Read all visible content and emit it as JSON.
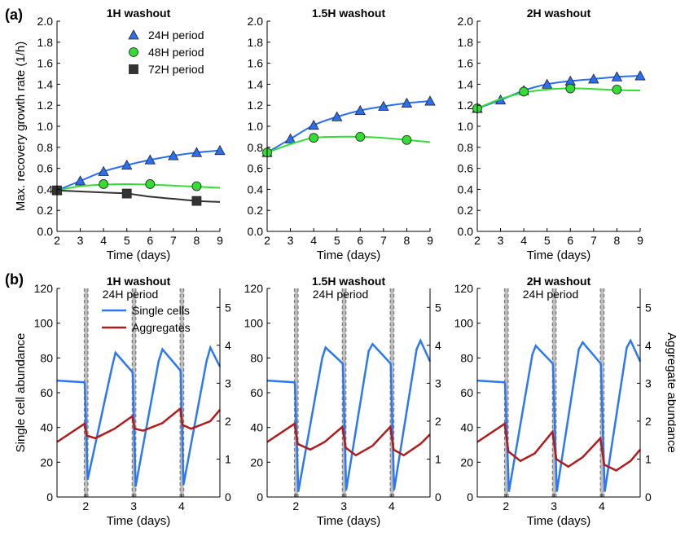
{
  "panel_labels": [
    "(a)",
    "(b)"
  ],
  "colors": {
    "p24": "#2b6ff0",
    "p48": "#33dd33",
    "p72": "#333333",
    "single": "#2b78f0",
    "agg": "#b01c1c",
    "washout": "#bdbdbd"
  },
  "chart_data": [
    {
      "type": "line",
      "id": "a1",
      "title": "1H washout",
      "xlabel": "Time (days)",
      "ylabel": "Max. recovery growth rate (1/h)",
      "xlim": [
        2,
        9
      ],
      "ylim": [
        0.0,
        2.0
      ],
      "xticks": [
        "2",
        "3",
        "4",
        "5",
        "6",
        "7",
        "8",
        "9"
      ],
      "yticks": [
        "0.0",
        "0.2",
        "0.4",
        "0.6",
        "0.8",
        "1.0",
        "1.2",
        "1.4",
        "1.6",
        "1.8",
        "2.0"
      ],
      "legend": [
        "24H period",
        "48H period",
        "72H period"
      ],
      "series": [
        {
          "name": "24H period",
          "color_key": "p24",
          "marker": "triangle",
          "x": [
            2,
            3,
            4,
            5,
            6,
            7,
            8,
            9
          ],
          "values": [
            0.39,
            0.48,
            0.57,
            0.63,
            0.68,
            0.72,
            0.75,
            0.77
          ]
        },
        {
          "name": "48H period",
          "color_key": "p48",
          "marker": "circle",
          "x": [
            2,
            4,
            6,
            8
          ],
          "values": [
            0.39,
            0.45,
            0.45,
            0.43
          ],
          "curve_x": [
            2,
            3,
            4,
            5,
            6,
            7,
            8,
            9
          ],
          "curve_y": [
            0.39,
            0.43,
            0.445,
            0.45,
            0.445,
            0.435,
            0.425,
            0.415
          ]
        },
        {
          "name": "72H period",
          "color_key": "p72",
          "marker": "square",
          "x": [
            2,
            5,
            8
          ],
          "values": [
            0.39,
            0.36,
            0.29
          ],
          "curve_x": [
            2,
            3,
            4,
            5,
            6,
            7,
            8,
            9
          ],
          "curve_y": [
            0.39,
            0.38,
            0.37,
            0.36,
            0.33,
            0.31,
            0.29,
            0.28
          ]
        }
      ]
    },
    {
      "type": "line",
      "id": "a2",
      "title": "1.5H washout",
      "xlabel": "Time (days)",
      "xlim": [
        2,
        9
      ],
      "ylim": [
        0.0,
        2.0
      ],
      "xticks": [
        "2",
        "3",
        "4",
        "5",
        "6",
        "7",
        "8",
        "9"
      ],
      "yticks": [
        "0.0",
        "0.2",
        "0.4",
        "0.6",
        "0.8",
        "1.0",
        "1.2",
        "1.4",
        "1.6",
        "1.8",
        "2.0"
      ],
      "series": [
        {
          "name": "24H period",
          "color_key": "p24",
          "marker": "triangle",
          "x": [
            2,
            3,
            4,
            5,
            6,
            7,
            8,
            9
          ],
          "values": [
            0.75,
            0.88,
            1.01,
            1.09,
            1.15,
            1.19,
            1.22,
            1.24
          ]
        },
        {
          "name": "48H period",
          "color_key": "p48",
          "marker": "circle",
          "x": [
            2,
            4,
            6,
            8
          ],
          "values": [
            0.75,
            0.89,
            0.9,
            0.87
          ],
          "curve_x": [
            2,
            3,
            4,
            5,
            6,
            7,
            8,
            9
          ],
          "curve_y": [
            0.75,
            0.83,
            0.89,
            0.9,
            0.9,
            0.89,
            0.87,
            0.85
          ]
        }
      ]
    },
    {
      "type": "line",
      "id": "a3",
      "title": "2H washout",
      "xlabel": "Time (days)",
      "xlim": [
        2,
        9
      ],
      "ylim": [
        0.0,
        2.0
      ],
      "xticks": [
        "2",
        "3",
        "4",
        "5",
        "6",
        "7",
        "8",
        "9"
      ],
      "yticks": [
        "0.0",
        "0.2",
        "0.4",
        "0.6",
        "0.8",
        "1.0",
        "1.2",
        "1.4",
        "1.6",
        "1.8",
        "2.0"
      ],
      "series": [
        {
          "name": "24H period",
          "color_key": "p24",
          "marker": "triangle",
          "x": [
            2,
            3,
            4,
            5,
            6,
            7,
            8,
            9
          ],
          "values": [
            1.17,
            1.25,
            1.34,
            1.4,
            1.43,
            1.45,
            1.47,
            1.48
          ]
        },
        {
          "name": "48H period",
          "color_key": "p48",
          "marker": "circle",
          "x": [
            2,
            4,
            6,
            8
          ],
          "values": [
            1.17,
            1.33,
            1.36,
            1.35
          ],
          "curve_x": [
            2,
            3,
            4,
            5,
            6,
            7,
            8,
            9
          ],
          "curve_y": [
            1.17,
            1.26,
            1.32,
            1.35,
            1.36,
            1.355,
            1.345,
            1.34
          ]
        }
      ]
    },
    {
      "type": "line",
      "id": "b1",
      "title": "1H washout",
      "subtitle": "24H period",
      "xlabel": "Time (days)",
      "ylabel": "Single cell abundance",
      "xlim": [
        1.4,
        4.8
      ],
      "ylim": [
        0,
        120
      ],
      "y2lim": [
        0,
        5.5
      ],
      "xticks": [
        "2",
        "3",
        "4"
      ],
      "yticks": [
        "0",
        "20",
        "40",
        "60",
        "80",
        "100",
        "120"
      ],
      "y2ticks": [
        "0",
        "1",
        "2",
        "3",
        "4",
        "5"
      ],
      "washout_days": [
        2.0,
        3.0,
        4.0
      ],
      "legend": [
        "Single cells",
        "Aggregates"
      ],
      "series": [
        {
          "name": "Single cells",
          "color_key": "single",
          "x": [
            1.4,
            1.97,
            1.98,
            2.04,
            2.55,
            2.62,
            2.97,
            2.98,
            3.04,
            3.52,
            3.6,
            3.97,
            3.98,
            4.04,
            4.52,
            4.6,
            4.8
          ],
          "values": [
            67,
            66,
            65,
            10,
            75,
            83,
            72,
            71,
            6,
            78,
            85,
            73,
            72,
            7,
            78,
            86,
            75
          ]
        },
        {
          "name": "Aggregates",
          "color_key": "agg",
          "x": [
            1.4,
            1.97,
            2.02,
            2.2,
            2.6,
            2.97,
            3.02,
            3.2,
            3.6,
            3.97,
            4.02,
            4.2,
            4.6,
            4.8
          ],
          "values": [
            1.45,
            1.93,
            1.62,
            1.55,
            1.8,
            2.13,
            1.8,
            1.75,
            1.95,
            2.33,
            1.9,
            1.8,
            2.0,
            2.3
          ]
        }
      ]
    },
    {
      "type": "line",
      "id": "b2",
      "title": "1.5H washout",
      "subtitle": "24H period",
      "xlabel": "Time (days)",
      "xlim": [
        1.4,
        4.8
      ],
      "ylim": [
        0,
        120
      ],
      "y2lim": [
        0,
        5.5
      ],
      "xticks": [
        "2",
        "3",
        "4"
      ],
      "yticks": [
        "0",
        "20",
        "40",
        "60",
        "80",
        "100",
        "120"
      ],
      "y2ticks": [
        "0",
        "1",
        "2",
        "3",
        "4",
        "5"
      ],
      "washout_days": [
        2.0,
        3.0,
        4.0
      ],
      "series": [
        {
          "name": "Single cells",
          "color_key": "single",
          "x": [
            1.4,
            1.97,
            1.98,
            2.05,
            2.55,
            2.62,
            2.97,
            2.98,
            3.05,
            3.52,
            3.6,
            3.97,
            3.98,
            4.05,
            4.52,
            4.6,
            4.8
          ],
          "values": [
            67,
            66,
            65,
            3,
            80,
            86,
            77,
            76,
            4,
            84,
            88,
            77,
            76,
            4,
            85,
            90,
            78
          ]
        },
        {
          "name": "Aggregates",
          "color_key": "agg",
          "x": [
            1.4,
            1.97,
            2.04,
            2.3,
            2.6,
            2.97,
            3.04,
            3.25,
            3.6,
            3.97,
            4.04,
            4.25,
            4.6,
            4.8
          ],
          "values": [
            1.45,
            1.93,
            1.4,
            1.25,
            1.45,
            1.85,
            1.3,
            1.1,
            1.35,
            1.85,
            1.25,
            1.1,
            1.4,
            1.65
          ]
        }
      ]
    },
    {
      "type": "line",
      "id": "b3",
      "title": "2H washout",
      "subtitle": "24H period",
      "xlabel": "Time (days)",
      "y2label": "Aggregate abundance",
      "xlim": [
        1.4,
        4.8
      ],
      "ylim": [
        0,
        120
      ],
      "y2lim": [
        0,
        5.5
      ],
      "xticks": [
        "2",
        "3",
        "4"
      ],
      "yticks": [
        "0",
        "20",
        "40",
        "60",
        "80",
        "100",
        "120"
      ],
      "y2ticks": [
        "0",
        "1",
        "2",
        "3",
        "4",
        "5"
      ],
      "washout_days": [
        2.0,
        3.0,
        4.0
      ],
      "series": [
        {
          "name": "Single cells",
          "color_key": "single",
          "x": [
            1.4,
            1.97,
            1.98,
            2.06,
            2.55,
            2.62,
            2.97,
            2.98,
            3.06,
            3.52,
            3.6,
            3.97,
            3.98,
            4.06,
            4.52,
            4.6,
            4.8
          ],
          "values": [
            67,
            66,
            65,
            3,
            82,
            87,
            77,
            76,
            3,
            85,
            89,
            77,
            76,
            3,
            86,
            90,
            78
          ]
        },
        {
          "name": "Aggregates",
          "color_key": "agg",
          "x": [
            1.4,
            1.97,
            2.05,
            2.3,
            2.6,
            2.97,
            3.05,
            3.3,
            3.6,
            3.97,
            4.05,
            4.3,
            4.6,
            4.8
          ],
          "values": [
            1.45,
            1.93,
            1.2,
            0.95,
            1.15,
            1.72,
            1.0,
            0.8,
            1.05,
            1.55,
            0.85,
            0.7,
            0.95,
            1.25
          ]
        }
      ]
    }
  ]
}
